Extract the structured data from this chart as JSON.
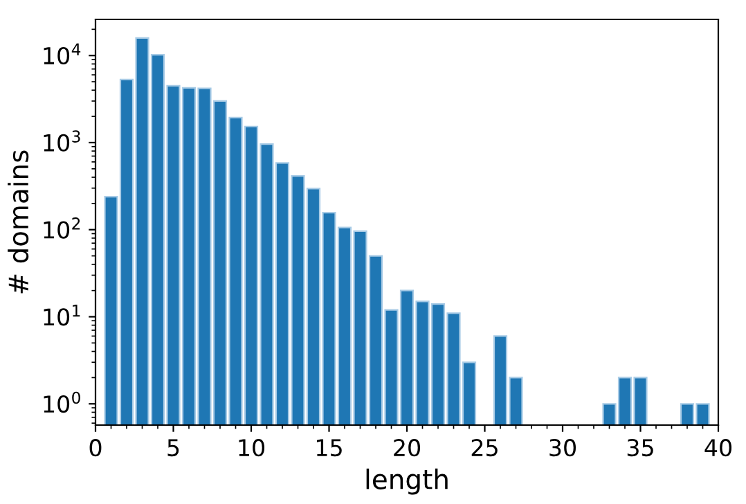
{
  "chart_data": {
    "type": "bar",
    "xlabel": "length",
    "ylabel": "# domains",
    "x": [
      1,
      2,
      3,
      4,
      5,
      6,
      7,
      8,
      9,
      10,
      11,
      12,
      13,
      14,
      15,
      16,
      17,
      18,
      19,
      20,
      21,
      22,
      23,
      24,
      25,
      26,
      27,
      28,
      29,
      30,
      31,
      32,
      33,
      34,
      35,
      36,
      37,
      38,
      39
    ],
    "values": [
      239,
      5300,
      15900,
      10200,
      4500,
      4250,
      4200,
      3000,
      1940,
      1530,
      960,
      583,
      414,
      297,
      157,
      106,
      96,
      50,
      12,
      20,
      15,
      14,
      11,
      3,
      null,
      6,
      2,
      null,
      null,
      null,
      null,
      null,
      1,
      2,
      2,
      null,
      null,
      1,
      1
    ],
    "color": "#1f77b4",
    "log": "y",
    "xlim": [
      0,
      40
    ],
    "xticks": [
      0,
      5,
      10,
      15,
      20,
      25,
      30,
      35,
      40
    ],
    "ylim": [
      0.57,
      26000
    ],
    "yticks": [
      {
        "value": 1,
        "label": "10$^{0}$"
      },
      {
        "value": 10,
        "label": "10$^{1}$"
      },
      {
        "value": 100,
        "label": "10$^{2}$"
      },
      {
        "value": 1000,
        "label": "10$^{3}$"
      },
      {
        "value": 10000,
        "label": "10$^{4}$"
      }
    ],
    "grid": false
  }
}
